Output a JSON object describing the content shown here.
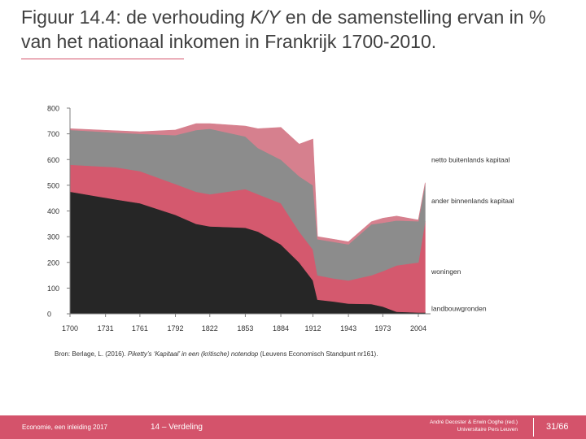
{
  "slide": {
    "title_prefix": "Figuur 14.4: de verhouding ",
    "title_italic": "K/Y",
    "title_suffix": " en de samenstelling ervan in % van het nationaal inkomen in Frankrijk 1700-2010.",
    "source_prefix": "Bron: Berlage, L. (2016). ",
    "source_italic": "Piketty’s ‘Kapitaal’ in een (kritische) notendop",
    "source_suffix": " (Leuvens Economisch Standpunt nr161).",
    "footer_left": "Economie, een inleiding 2017",
    "footer_mid": "14 – Verdeling",
    "footer_right_line1": "André Decoster & Erwin Ooghe (red.)",
    "footer_right_line2": "Universitaire Pers Leuven",
    "page": "31/66"
  },
  "colors": {
    "accent": "#d4536b",
    "landbouwgronden": "#262626",
    "woningen": "#d4596e",
    "ander_binnenlands": "#8c8c8c",
    "netto_buitenlands": "#d6808e"
  },
  "chart_data": {
    "type": "area",
    "stacked": true,
    "x": [
      1700,
      1731,
      1761,
      1792,
      1822,
      1853,
      1884,
      1912,
      1943,
      1973,
      2004
    ],
    "x_ticks": [
      "1700",
      "1731",
      "1761",
      "1792",
      "1822",
      "1853",
      "1884",
      "1912",
      "1943",
      "1973",
      "2004"
    ],
    "x_range": [
      1700,
      2010
    ],
    "y_range": [
      0,
      800
    ],
    "y_ticks": [
      "0",
      "100",
      "200",
      "300",
      "400",
      "500",
      "600",
      "700",
      "800"
    ],
    "series": [
      {
        "name": "landbouwgronden",
        "key": "landbouwgronden",
        "points": [
          [
            1700,
            475
          ],
          [
            1740,
            445
          ],
          [
            1761,
            430
          ],
          [
            1792,
            385
          ],
          [
            1810,
            350
          ],
          [
            1822,
            340
          ],
          [
            1853,
            335
          ],
          [
            1864,
            320
          ],
          [
            1884,
            270
          ],
          [
            1900,
            200
          ],
          [
            1912,
            130
          ],
          [
            1916,
            55
          ],
          [
            1930,
            48
          ],
          [
            1943,
            40
          ],
          [
            1963,
            38
          ],
          [
            1973,
            28
          ],
          [
            1985,
            8
          ],
          [
            2004,
            5
          ],
          [
            2010,
            5
          ]
        ]
      },
      {
        "name": "woningen",
        "key": "woningen",
        "points": [
          [
            1700,
            105
          ],
          [
            1740,
            125
          ],
          [
            1761,
            125
          ],
          [
            1792,
            120
          ],
          [
            1810,
            125
          ],
          [
            1822,
            125
          ],
          [
            1853,
            150
          ],
          [
            1864,
            145
          ],
          [
            1884,
            160
          ],
          [
            1900,
            120
          ],
          [
            1912,
            120
          ],
          [
            1916,
            95
          ],
          [
            1930,
            90
          ],
          [
            1943,
            90
          ],
          [
            1963,
            112
          ],
          [
            1973,
            138
          ],
          [
            1985,
            180
          ],
          [
            2004,
            195
          ],
          [
            2010,
            355
          ]
        ]
      },
      {
        "name": "ander binnenlands kapitaal",
        "key": "ander_binnenlands",
        "points": [
          [
            1700,
            135
          ],
          [
            1740,
            135
          ],
          [
            1761,
            145
          ],
          [
            1792,
            190
          ],
          [
            1810,
            240
          ],
          [
            1822,
            255
          ],
          [
            1853,
            205
          ],
          [
            1864,
            180
          ],
          [
            1884,
            170
          ],
          [
            1900,
            215
          ],
          [
            1912,
            250
          ],
          [
            1916,
            140
          ],
          [
            1930,
            142
          ],
          [
            1943,
            140
          ],
          [
            1963,
            198
          ],
          [
            1973,
            188
          ],
          [
            1985,
            175
          ],
          [
            2004,
            160
          ],
          [
            2010,
            145
          ]
        ]
      },
      {
        "name": "netto buitenlands kapitaal",
        "key": "netto_buitenlands",
        "points": [
          [
            1700,
            5
          ],
          [
            1740,
            7
          ],
          [
            1761,
            8
          ],
          [
            1792,
            20
          ],
          [
            1810,
            25
          ],
          [
            1822,
            20
          ],
          [
            1853,
            40
          ],
          [
            1864,
            75
          ],
          [
            1884,
            125
          ],
          [
            1900,
            125
          ],
          [
            1912,
            180
          ],
          [
            1916,
            10
          ],
          [
            1930,
            10
          ],
          [
            1943,
            10
          ],
          [
            1963,
            10
          ],
          [
            1973,
            18
          ],
          [
            1985,
            17
          ],
          [
            2004,
            5
          ],
          [
            2010,
            5
          ]
        ]
      }
    ],
    "legend": [
      {
        "key": "netto_buitenlands",
        "label": "netto buitenlands kapitaal",
        "anchor_year": 2004,
        "anchor_value": 600
      },
      {
        "key": "ander_binnenlands",
        "label": "ander binnenlands kapitaal",
        "anchor_year": 2004,
        "anchor_value": 440
      },
      {
        "key": "woningen",
        "label": "woningen",
        "anchor_year": 2004,
        "anchor_value": 165
      },
      {
        "key": "landbouwgronden",
        "label": "landbouwgronden",
        "anchor_year": 2004,
        "anchor_value": 20
      }
    ],
    "title": "",
    "xlabel": "",
    "ylabel": "",
    "grid": false,
    "legend_placement": "right"
  }
}
